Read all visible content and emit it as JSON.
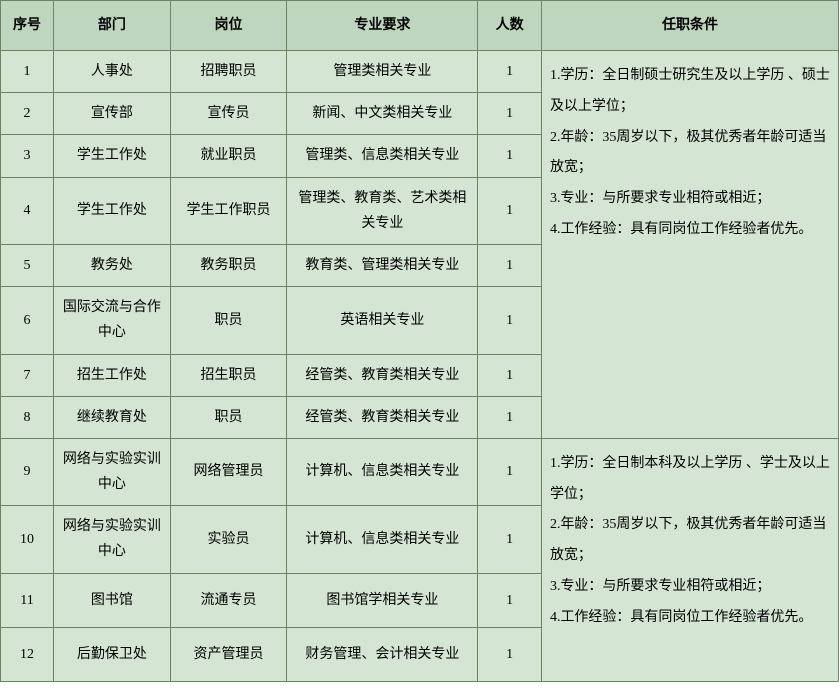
{
  "table": {
    "headers": {
      "seq": "序号",
      "dept": "部门",
      "position": "岗位",
      "requirement": "专业要求",
      "number": "人数",
      "condition": "任职条件"
    },
    "rows": [
      {
        "seq": "1",
        "dept": "人事处",
        "position": "招聘职员",
        "requirement": "管理类相关专业",
        "number": "1"
      },
      {
        "seq": "2",
        "dept": "宣传部",
        "position": "宣传员",
        "requirement": "新闻、中文类相关专业",
        "number": "1"
      },
      {
        "seq": "3",
        "dept": "学生工作处",
        "position": "就业职员",
        "requirement": "管理类、信息类相关专业",
        "number": "1"
      },
      {
        "seq": "4",
        "dept": "学生工作处",
        "position": "学生工作职员",
        "requirement": "管理类、教育类、艺术类相关专业",
        "number": "1"
      },
      {
        "seq": "5",
        "dept": "教务处",
        "position": "教务职员",
        "requirement": "教育类、管理类相关专业",
        "number": "1"
      },
      {
        "seq": "6",
        "dept": "国际交流与合作中心",
        "position": "职员",
        "requirement": "英语相关专业",
        "number": "1"
      },
      {
        "seq": "7",
        "dept": "招生工作处",
        "position": "招生职员",
        "requirement": "经管类、教育类相关专业",
        "number": "1"
      },
      {
        "seq": "8",
        "dept": "继续教育处",
        "position": "职员",
        "requirement": "经管类、教育类相关专业",
        "number": "1"
      },
      {
        "seq": "9",
        "dept": "网络与实验实训中心",
        "position": "网络管理员",
        "requirement": "计算机、信息类相关专业",
        "number": "1"
      },
      {
        "seq": "10",
        "dept": "网络与实验实训中心",
        "position": "实验员",
        "requirement": "计算机、信息类相关专业",
        "number": "1"
      },
      {
        "seq": "11",
        "dept": "图书馆",
        "position": "流通专员",
        "requirement": "图书馆学相关专业",
        "number": "1"
      },
      {
        "seq": "12",
        "dept": "后勤保卫处",
        "position": "资产管理员",
        "requirement": "财务管理、会计相关专业",
        "number": "1"
      }
    ],
    "conditions": {
      "group1": {
        "line1": "1.学历：全日制硕士研究生及以上学历 、硕士及以上学位；",
        "line2": "2.年龄：35周岁以下，极其优秀者年龄可适当放宽；",
        "line3": "3.专业：与所要求专业相符或相近；",
        "line4": "4.工作经验：具有同岗位工作经验者优先。"
      },
      "group2": {
        "line1": "1.学历：全日制本科及以上学历 、学士及以上学位；",
        "line2": "2.年龄：35周岁以下，极其优秀者年龄可适当放宽；",
        "line3": "3.专业：与所要求专业相符或相近；",
        "line4": "4.工作经验：具有同岗位工作经验者优先。"
      }
    },
    "style": {
      "header_bg": "#bed5be",
      "cell_bg": "#d4e5d4",
      "border_color": "#6b8560",
      "font_size": 14
    }
  }
}
